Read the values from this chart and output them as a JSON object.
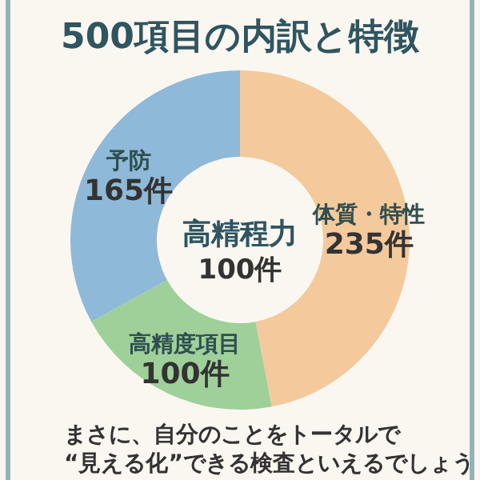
{
  "chart_data": {
    "type": "donut",
    "title": "500項目の内訳と特徴",
    "categories": [
      "体質・特性",
      "高精度項目",
      "予防"
    ],
    "values": [
      235,
      100,
      165
    ],
    "value_labels": [
      "235件",
      "100件",
      "165件"
    ],
    "colors": [
      "#f4c99c",
      "#9fd09a",
      "#8fb9d8"
    ],
    "annotations": [
      "高精程力",
      "100件",
      "まさに、自分のことをトータルで",
      "“見える化”できる検査といえるでしょう"
    ]
  }
}
